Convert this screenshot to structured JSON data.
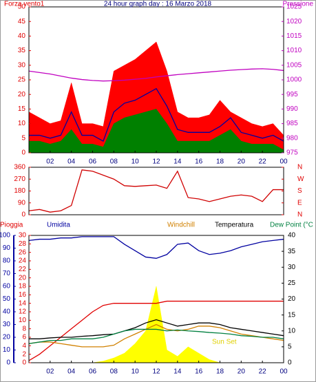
{
  "chart_data": [
    {
      "type": "line",
      "title": "24 hour graph day : 16 Marzo 2018",
      "ylabel": "Forza vento1",
      "y2label": "Pressione",
      "x": [
        0,
        1,
        2,
        3,
        4,
        5,
        6,
        7,
        8,
        9,
        10,
        11,
        12,
        13,
        14,
        15,
        16,
        17,
        18,
        19,
        20,
        21,
        22,
        23,
        24
      ],
      "xlim": [
        0,
        24
      ],
      "xticks": [
        {
          "value": 2,
          "label": "02"
        },
        {
          "value": 4,
          "label": "04"
        },
        {
          "value": 6,
          "label": "06"
        },
        {
          "value": 8,
          "label": "08"
        },
        10,
        12,
        14,
        16,
        18,
        20,
        22,
        {
          "value": 24,
          "label": "00"
        }
      ],
      "ylim": [
        0,
        50
      ],
      "yticks": [
        0,
        5,
        10,
        15,
        20,
        25,
        30,
        35,
        40,
        45,
        50
      ],
      "ytick_color": "#e00000",
      "y2lim": [
        975,
        1025
      ],
      "y2ticks": [
        975,
        980,
        985,
        990,
        995,
        1000,
        1005,
        1010,
        1015,
        1020,
        1025
      ],
      "y2tick_color": "#c000c0",
      "series": [
        {
          "style": "area",
          "color": "#ff0000",
          "values": [
            14,
            12,
            10,
            11,
            24,
            10,
            10,
            9,
            28,
            30,
            32,
            35,
            38,
            28,
            14,
            12,
            12,
            13,
            18,
            14,
            12,
            10,
            9,
            10,
            6
          ]
        },
        {
          "style": "area",
          "color": "#008000",
          "values": [
            4,
            4,
            3,
            4,
            8,
            3,
            3,
            2,
            10,
            12,
            13,
            14,
            15,
            10,
            4,
            4,
            4,
            4,
            6,
            8,
            4,
            3,
            3,
            3,
            1
          ]
        },
        {
          "style": "line",
          "color": "#0000a0",
          "values": [
            6,
            6,
            5,
            6,
            14,
            6,
            6,
            4,
            14,
            17,
            18,
            20,
            22,
            16,
            8,
            7,
            7,
            7,
            9,
            12,
            7,
            6,
            5,
            6,
            4
          ]
        },
        {
          "style": "line",
          "color": "#c000c0",
          "axis": "y2",
          "values": [
            1003,
            1002.5,
            1002,
            1001.3,
            1000.6,
            1000.1,
            999.8,
            999.6,
            999.7,
            999.9,
            1000.2,
            1000.5,
            1001,
            1001.4,
            1001.8,
            1002.1,
            1002.4,
            1002.7,
            1003,
            1003.3,
            1003.5,
            1003.7,
            1003.8,
            1003.6,
            1003.2
          ]
        }
      ]
    },
    {
      "type": "line",
      "x": [
        0,
        1,
        2,
        3,
        4,
        5,
        6,
        7,
        8,
        9,
        10,
        11,
        12,
        13,
        14,
        15,
        16,
        17,
        18,
        19,
        20,
        21,
        22,
        23,
        24
      ],
      "xlim": [
        0,
        24
      ],
      "ylim": [
        0,
        360
      ],
      "yticks": [
        0,
        90,
        180,
        270,
        360
      ],
      "ytick_color": "#e00000",
      "y2lim": [
        0,
        360
      ],
      "y2ticks": [
        {
          "value": 360,
          "label": "N"
        },
        {
          "value": 270,
          "label": "W"
        },
        {
          "value": 180,
          "label": "S"
        },
        {
          "value": 90,
          "label": "E"
        },
        {
          "value": 0,
          "label": "N"
        }
      ],
      "y2tick_color": "#e00000",
      "series": [
        {
          "style": "line",
          "color": "#d00000",
          "values": [
            30,
            40,
            20,
            30,
            70,
            340,
            330,
            300,
            270,
            220,
            215,
            220,
            225,
            200,
            330,
            130,
            120,
            100,
            120,
            140,
            150,
            140,
            100,
            190,
            190
          ]
        }
      ]
    },
    {
      "type": "line",
      "annotation": "Sun Set",
      "x": [
        0,
        1,
        2,
        3,
        4,
        5,
        6,
        7,
        8,
        9,
        10,
        11,
        12,
        13,
        14,
        15,
        16,
        17,
        18,
        19,
        20,
        21,
        22,
        23,
        24
      ],
      "xlim": [
        0,
        24
      ],
      "xticks": [
        {
          "value": 2,
          "label": "02"
        },
        {
          "value": 4,
          "label": "04"
        },
        {
          "value": 6,
          "label": "06"
        },
        {
          "value": 8,
          "label": "08"
        },
        10,
        12,
        14,
        16,
        18,
        20,
        22,
        {
          "value": 24,
          "label": "00"
        }
      ],
      "ylim": [
        0,
        30
      ],
      "yticks": [
        0,
        2,
        4,
        6,
        8,
        10,
        12,
        14,
        16,
        18,
        20,
        22,
        24,
        26,
        28,
        30
      ],
      "ytick_color": "#e00000",
      "y2lim": [
        0,
        40
      ],
      "y2ticks": [
        0,
        5,
        10,
        15,
        20,
        25,
        30,
        35,
        40
      ],
      "y2tick_color": "#000000",
      "y3lim": [
        0,
        100
      ],
      "y3ticks": [
        0,
        10,
        20,
        30,
        40,
        50,
        60,
        70,
        80,
        90,
        100
      ],
      "y3tick_color": "#0000a0",
      "series": [
        {
          "style": "area",
          "color": "#ffff00",
          "axis": "y2",
          "values": [
            0,
            0,
            0,
            0,
            0,
            0,
            0,
            0.5,
            1.5,
            3,
            6,
            10,
            24,
            4,
            2,
            5,
            3,
            1,
            0,
            0,
            0,
            0,
            0,
            0,
            0
          ]
        },
        {
          "name": "Pioggia",
          "style": "line",
          "color": "#e00000",
          "values": [
            0.5,
            2,
            4,
            6,
            8,
            10,
            12,
            13.5,
            14,
            14,
            14,
            14,
            14,
            14.5,
            14.5,
            14.5,
            14.5,
            14.5,
            14.5,
            14.5,
            14.5,
            14.5,
            14.5,
            14.5,
            14.5
          ]
        },
        {
          "name": "Umidita",
          "style": "line",
          "color": "#0000a0",
          "axis": "y3",
          "values": [
            96,
            97,
            97,
            98,
            98,
            99,
            99,
            99,
            99,
            93,
            88,
            83,
            82,
            85,
            93,
            94,
            88,
            85,
            86,
            88,
            91,
            93,
            95,
            96,
            97
          ]
        },
        {
          "name": "Windchill",
          "style": "line",
          "color": "#d08000",
          "axis": "y2",
          "values": [
            6,
            6.5,
            6.5,
            6,
            5.5,
            5,
            5,
            5,
            5.5,
            7.5,
            9,
            10.5,
            12,
            10.5,
            10,
            10.5,
            11.5,
            11.5,
            11,
            10,
            9,
            8.5,
            8,
            7.5,
            7
          ]
        },
        {
          "name": "Temperatura",
          "style": "line",
          "color": "#000000",
          "axis": "y2",
          "values": [
            7.5,
            7.5,
            7.8,
            8,
            8,
            8.3,
            8.5,
            8.8,
            9,
            10,
            11,
            12.5,
            13.5,
            12.5,
            11.5,
            12,
            12.5,
            12.5,
            12,
            11,
            10.5,
            10,
            9.5,
            9,
            8.5
          ]
        },
        {
          "name": "Dew Point (°C",
          "style": "line",
          "color": "#008040",
          "axis": "y2",
          "values": [
            6,
            6.5,
            7,
            7,
            7.5,
            7.5,
            7.5,
            8,
            9,
            10,
            10.5,
            10.5,
            10.5,
            10,
            10.3,
            10,
            9.8,
            9.5,
            9.3,
            9,
            8.5,
            8.3,
            8,
            8,
            7.5
          ]
        }
      ]
    }
  ]
}
